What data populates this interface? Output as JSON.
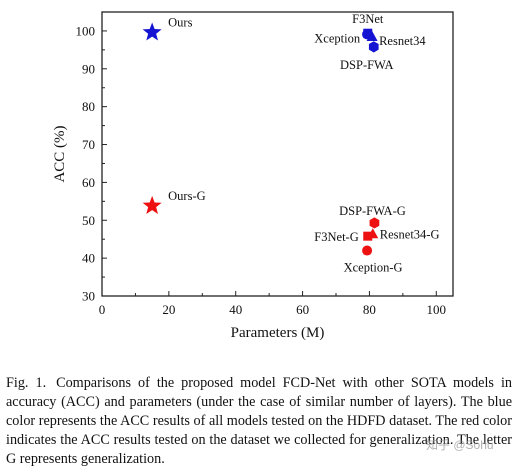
{
  "chart_data": {
    "type": "scatter",
    "xlabel": "Parameters (M)",
    "ylabel": "ACC (%)",
    "xlim": [
      0,
      105
    ],
    "ylim": [
      30,
      105
    ],
    "xticks": [
      0,
      20,
      40,
      60,
      80,
      100
    ],
    "yticks": [
      30,
      40,
      50,
      60,
      70,
      80,
      90,
      100
    ],
    "grid": false,
    "colors": {
      "blue": "#1414d2",
      "red": "#ee1111"
    },
    "points": [
      {
        "label": "Ours",
        "x": 15,
        "y": 99.6,
        "color": "blue",
        "marker": "star"
      },
      {
        "label": "F3Net",
        "x": 79.5,
        "y": 99.4,
        "color": "blue",
        "marker": "square"
      },
      {
        "label": "Xception",
        "x": 79.3,
        "y": 99.1,
        "color": "blue",
        "marker": "circle"
      },
      {
        "label": "Resnet34",
        "x": 80.8,
        "y": 98.4,
        "color": "blue",
        "marker": "triangle"
      },
      {
        "label": "DSP-FWA",
        "x": 81.3,
        "y": 95.8,
        "color": "blue",
        "marker": "hexagon"
      },
      {
        "label": "Ours-G",
        "x": 15,
        "y": 53.8,
        "color": "red",
        "marker": "star"
      },
      {
        "label": "DSP-FWA-G",
        "x": 81.5,
        "y": 49.3,
        "color": "red",
        "marker": "hexagon"
      },
      {
        "label": "F3Net-G",
        "x": 79.5,
        "y": 45.8,
        "color": "red",
        "marker": "square"
      },
      {
        "label": "Resnet34-G",
        "x": 81.0,
        "y": 46.3,
        "color": "red",
        "marker": "triangle"
      },
      {
        "label": "Xception-G",
        "x": 79.3,
        "y": 42.0,
        "color": "red",
        "marker": "circle"
      }
    ]
  },
  "caption": {
    "label": "Fig. 1.",
    "text": "Comparisons of the proposed model FCD-Net with other SOTA models in accuracy (ACC) and parameters (under the case of similar number of layers). The blue color represents the ACC results of all models tested on the HDFD dataset. The red color indicates the ACC results tested on the dataset we collected for generalization. The letter G represents generalization."
  },
  "watermark": "知乎 @Sohu"
}
